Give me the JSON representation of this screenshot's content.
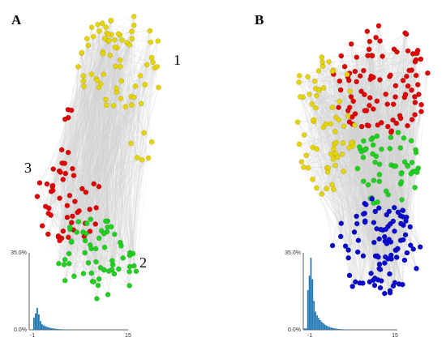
{
  "panels": [
    {
      "letter": "A",
      "cluster_labels": [
        "1",
        "2",
        "3"
      ],
      "histogram": {
        "y_top_label": "35.0%",
        "y_bottom_label": "0.0%",
        "x_left_label": "-1",
        "x_right_label": "15"
      }
    },
    {
      "letter": "B",
      "histogram": {
        "y_top_label": "35.0%",
        "y_bottom_label": "0.0%",
        "x_left_label": "-1",
        "x_right_label": "15"
      }
    }
  ],
  "colors": {
    "yellow_nodes": "#e6d400",
    "red_nodes": "#e00000",
    "green_nodes": "#1fd01f",
    "blue_nodes": "#0a0acc",
    "edges": "#d0d0d0",
    "histogram_bars": "#1f77b4"
  }
}
